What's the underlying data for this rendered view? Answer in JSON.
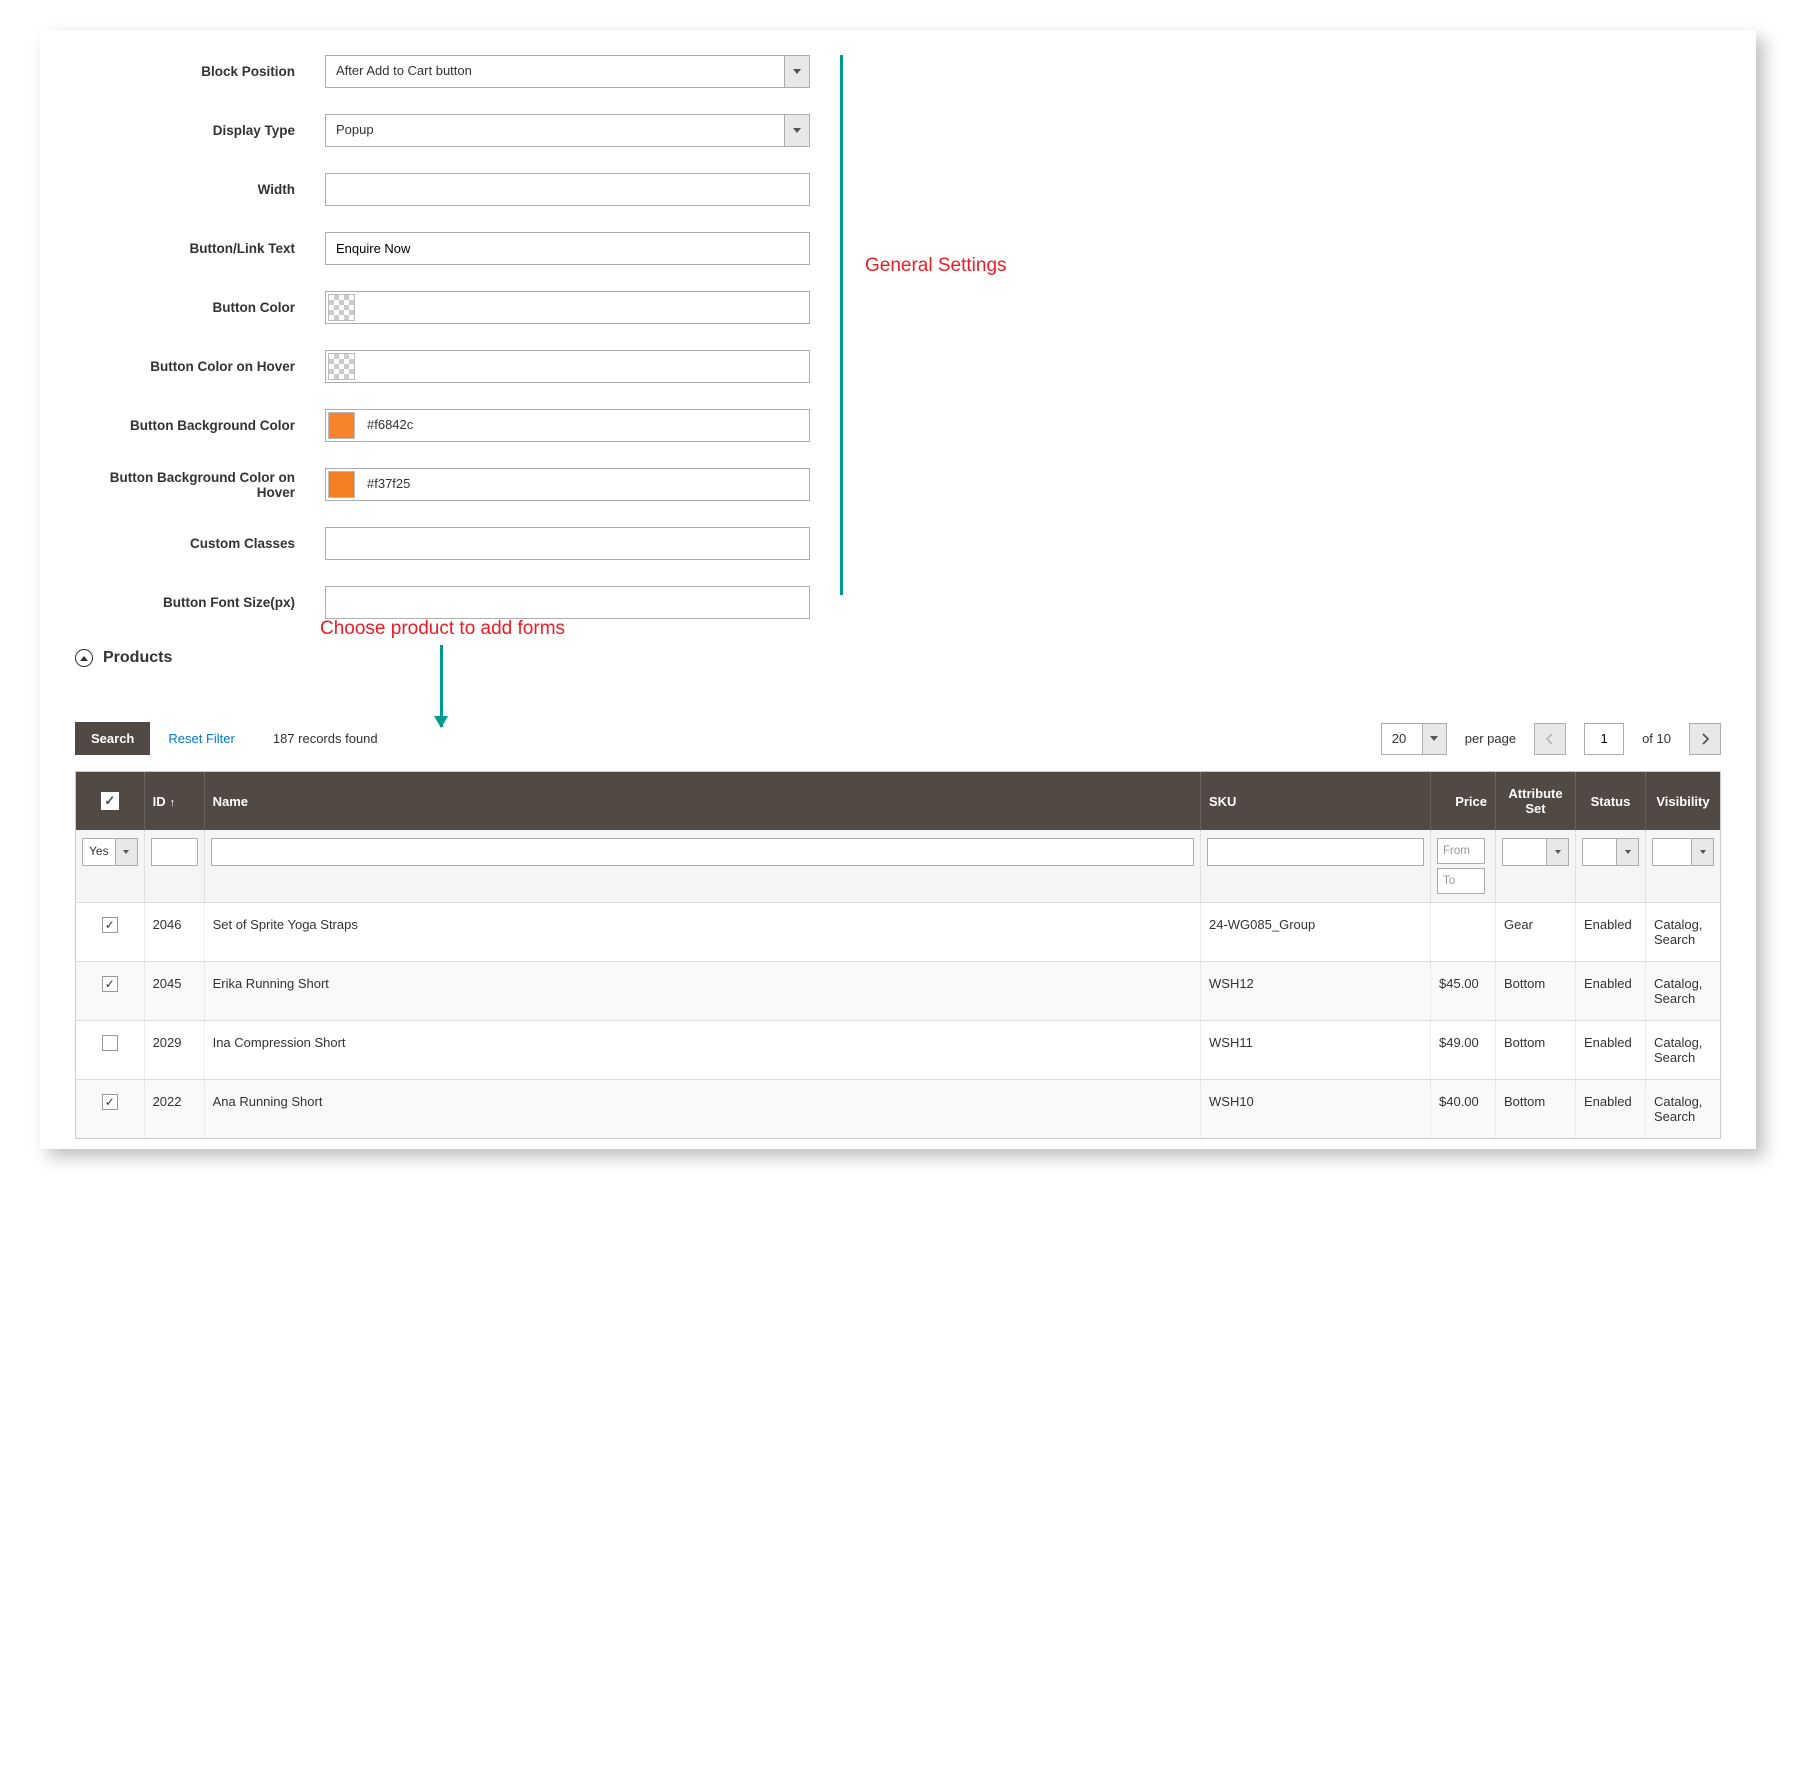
{
  "annotations": {
    "general_settings": "General Settings",
    "choose_product": "Choose product to add forms"
  },
  "form": {
    "block_position": {
      "label": "Block Position",
      "value": "After Add to Cart button"
    },
    "display_type": {
      "label": "Display Type",
      "value": "Popup"
    },
    "width": {
      "label": "Width",
      "value": ""
    },
    "button_text": {
      "label": "Button/Link Text",
      "value": "Enquire Now"
    },
    "button_color": {
      "label": "Button Color",
      "value": "",
      "swatch": "checker"
    },
    "button_color_hover": {
      "label": "Button Color on Hover",
      "value": "",
      "swatch": "checker"
    },
    "button_bg": {
      "label": "Button Background Color",
      "value": "#f6842c",
      "swatch": "#f6842c"
    },
    "button_bg_hover": {
      "label": "Button Background Color on Hover",
      "value": "#f37f25",
      "swatch": "#f37f25"
    },
    "custom_classes": {
      "label": "Custom Classes",
      "value": ""
    },
    "font_size": {
      "label": "Button Font Size(px)",
      "value": ""
    }
  },
  "section": {
    "products_title": "Products"
  },
  "toolbar": {
    "search": "Search",
    "reset": "Reset Filter",
    "records": "187 records found",
    "per_page_value": "20",
    "per_page_label": "per page",
    "page": "1",
    "of_pages": "of 10"
  },
  "grid": {
    "columns": {
      "id": "ID",
      "name": "Name",
      "sku": "SKU",
      "price": "Price",
      "attr": "Attribute Set",
      "status": "Status",
      "vis": "Visibility"
    },
    "filter": {
      "checkbox": "Yes",
      "price_from": "From",
      "price_to": "To"
    },
    "rows": [
      {
        "checked": true,
        "alt": false,
        "id": "2046",
        "name": "Set of Sprite Yoga Straps",
        "sku": "24-WG085_Group",
        "price": "",
        "attr": "Gear",
        "status": "Enabled",
        "vis": "Catalog, Search"
      },
      {
        "checked": true,
        "alt": true,
        "id": "2045",
        "name": "Erika Running Short",
        "sku": "WSH12",
        "price": "$45.00",
        "attr": "Bottom",
        "status": "Enabled",
        "vis": "Catalog, Search"
      },
      {
        "checked": false,
        "alt": false,
        "id": "2029",
        "name": "Ina Compression Short",
        "sku": "WSH11",
        "price": "$49.00",
        "attr": "Bottom",
        "status": "Enabled",
        "vis": "Catalog, Search"
      },
      {
        "checked": true,
        "alt": true,
        "id": "2022",
        "name": "Ana Running Short",
        "sku": "WSH10",
        "price": "$40.00",
        "attr": "Bottom",
        "status": "Enabled",
        "vis": "Catalog, Search"
      }
    ]
  }
}
